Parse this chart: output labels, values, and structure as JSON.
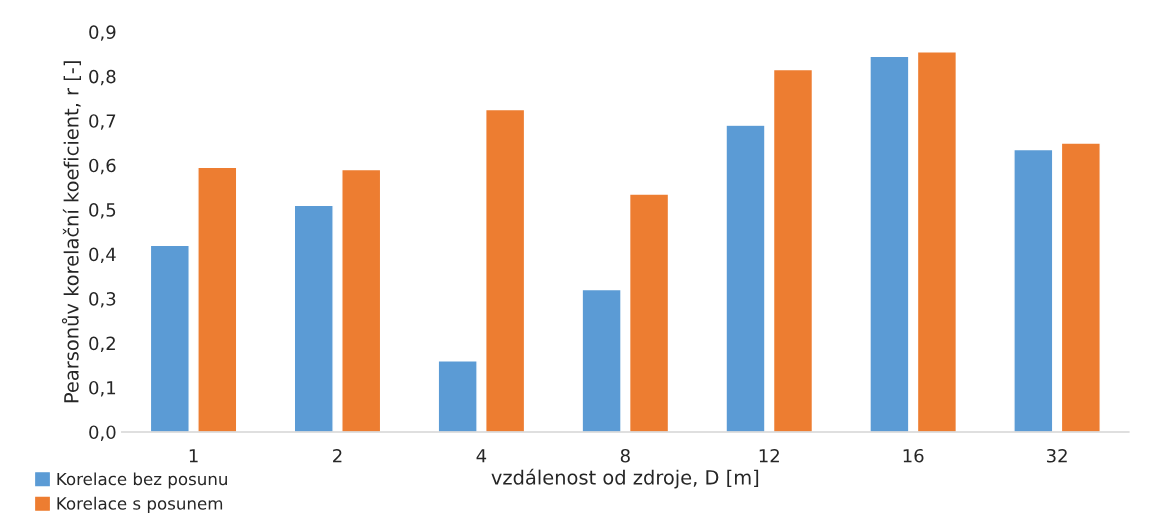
{
  "chart_data": {
    "type": "bar",
    "xlabel": "vzdálenost od zdroje, D [m]",
    "ylabel": "Pearsonův korelační koeficient, r [-]",
    "categories": [
      "1",
      "2",
      "4",
      "8",
      "12",
      "16",
      "32"
    ],
    "series": [
      {
        "name": "Korelace bez posunu",
        "color": "#5b9bd5",
        "values": [
          0.42,
          0.51,
          0.16,
          0.32,
          0.69,
          0.845,
          0.635
        ]
      },
      {
        "name": "Korelace s posunem",
        "color": "#ed7d31",
        "values": [
          0.595,
          0.59,
          0.725,
          0.535,
          0.815,
          0.855,
          0.65
        ]
      }
    ],
    "ylim": [
      0,
      0.9
    ],
    "yticks": [
      {
        "value": 0,
        "label": "0,0"
      },
      {
        "value": 0.1,
        "label": "0,1"
      },
      {
        "value": 0.2,
        "label": "0,2"
      },
      {
        "value": 0.3,
        "label": "0,3"
      },
      {
        "value": 0.4,
        "label": "0,4"
      },
      {
        "value": 0.5,
        "label": "0,5"
      },
      {
        "value": 0.6,
        "label": "0,6"
      },
      {
        "value": 0.7,
        "label": "0,7"
      },
      {
        "value": 0.8,
        "label": "0,8"
      },
      {
        "value": 0.9,
        "label": "0,9"
      }
    ],
    "grid": false,
    "legend": "bottom left"
  }
}
